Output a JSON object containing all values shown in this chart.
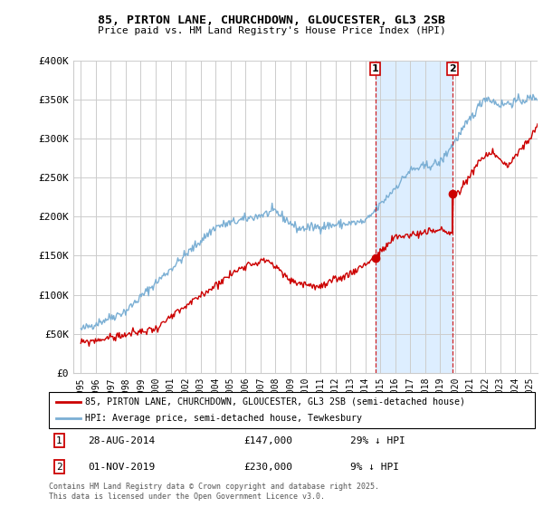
{
  "title": "85, PIRTON LANE, CHURCHDOWN, GLOUCESTER, GL3 2SB",
  "subtitle": "Price paid vs. HM Land Registry's House Price Index (HPI)",
  "legend_line1": "85, PIRTON LANE, CHURCHDOWN, GLOUCESTER, GL3 2SB (semi-detached house)",
  "legend_line2": "HPI: Average price, semi-detached house, Tewkesbury",
  "annotation1_date": "28-AUG-2014",
  "annotation1_price": "£147,000",
  "annotation1_hpi": "29% ↓ HPI",
  "annotation2_date": "01-NOV-2019",
  "annotation2_price": "£230,000",
  "annotation2_hpi": "9% ↓ HPI",
  "footer": "Contains HM Land Registry data © Crown copyright and database right 2025.\nThis data is licensed under the Open Government Licence v3.0.",
  "ylim": [
    0,
    400000
  ],
  "yticks": [
    0,
    50000,
    100000,
    150000,
    200000,
    250000,
    300000,
    350000,
    400000
  ],
  "ytick_labels": [
    "£0",
    "£50K",
    "£100K",
    "£150K",
    "£200K",
    "£250K",
    "£300K",
    "£350K",
    "£400K"
  ],
  "red_color": "#cc0000",
  "blue_color": "#7bafd4",
  "blue_fill_color": "#ddeeff",
  "vline_color": "#cc0000",
  "grid_color": "#cccccc",
  "background_color": "#ffffff",
  "x_start_year": 1995,
  "x_end_year": 2025,
  "purchase1_year": 2014.66,
  "purchase1_value": 147000,
  "purchase2_year": 2019.83,
  "purchase2_value": 230000,
  "purchase2_prev_value": 180000
}
